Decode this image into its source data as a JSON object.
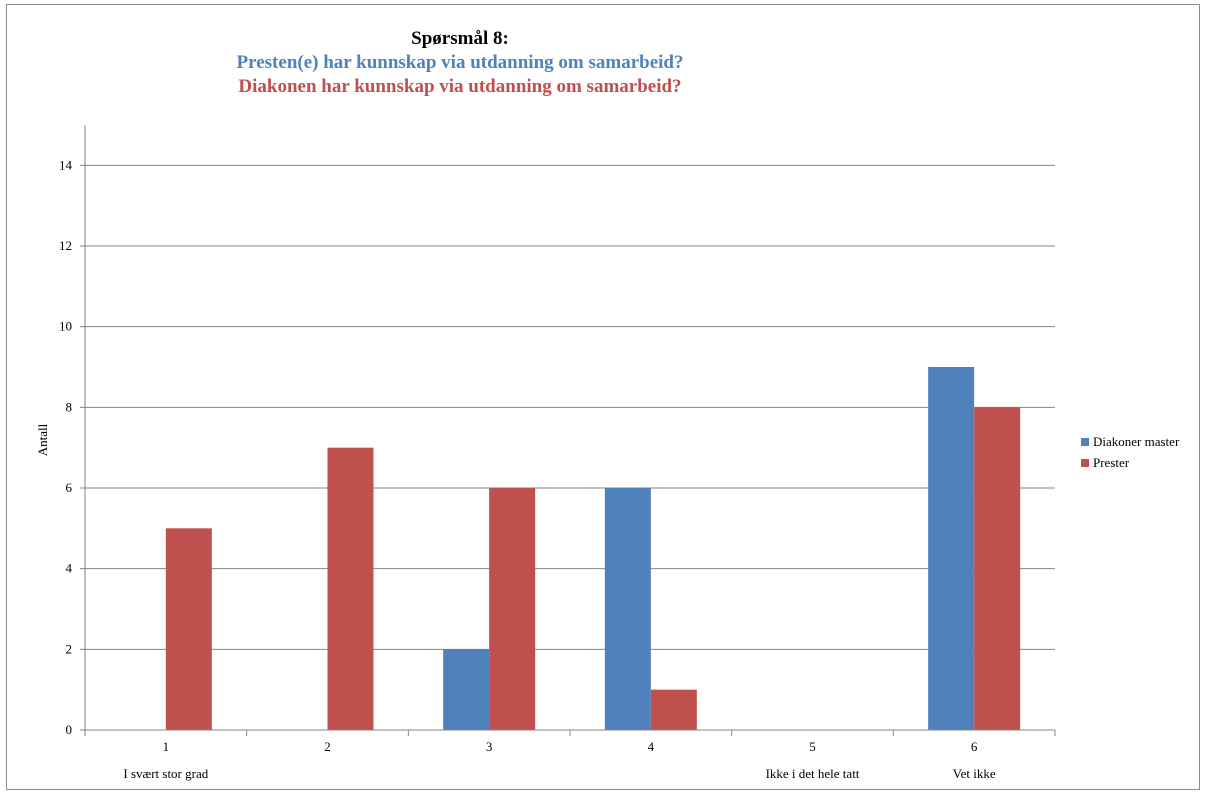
{
  "chart_data": {
    "type": "bar",
    "title": "Spørsmål 8:",
    "subtitle_lines": [
      "Presten(e) har kunnskap via utdanning om samarbeid?",
      "Diakonen har kunnskap via utdanning om samarbeid?"
    ],
    "subtitle_colors": [
      "#4f81bd",
      "#c0504d"
    ],
    "xlabel": "",
    "ylabel": "Antall",
    "categories": [
      "1",
      "2",
      "3",
      "4",
      "5",
      "6"
    ],
    "category_descriptions": [
      "I svært stor grad",
      "",
      "",
      "",
      "Ikke i det hele tatt",
      "Vet ikke"
    ],
    "ylim": [
      0,
      15
    ],
    "yticks": [
      0,
      2,
      4,
      6,
      8,
      10,
      12,
      14
    ],
    "grid": true,
    "legend_position": "right",
    "series": [
      {
        "name": "Diakoner master",
        "color": "#4f81bd",
        "values": [
          0,
          0,
          2,
          6,
          0,
          9
        ]
      },
      {
        "name": "Prester",
        "color": "#c0504d",
        "values": [
          5,
          7,
          6,
          1,
          0,
          8
        ]
      }
    ]
  }
}
